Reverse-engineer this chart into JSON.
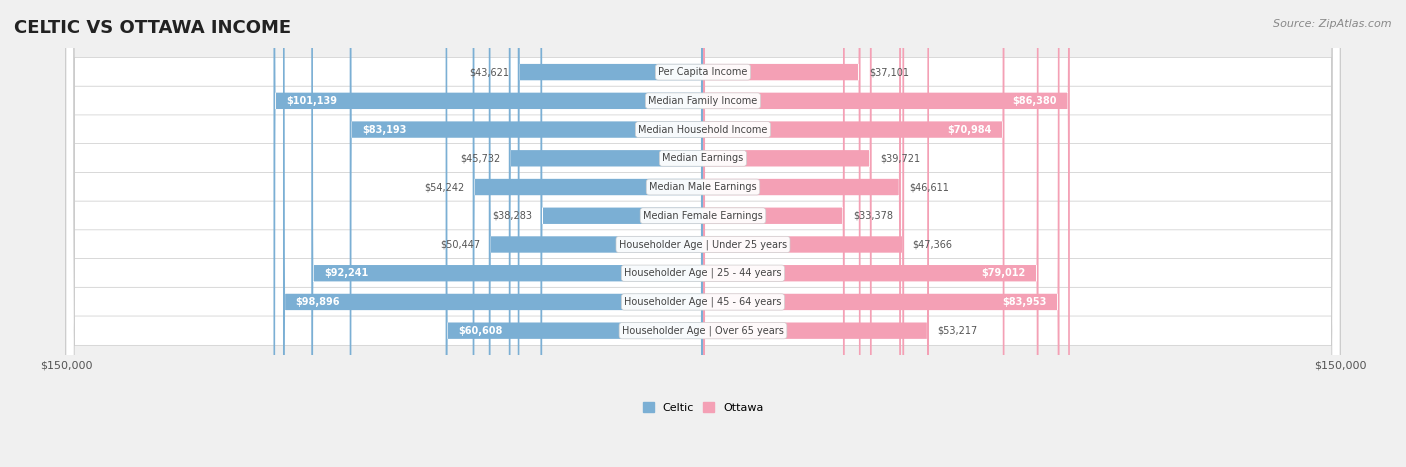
{
  "title": "CELTIC VS OTTAWA INCOME",
  "source": "Source: ZipAtlas.com",
  "categories": [
    "Per Capita Income",
    "Median Family Income",
    "Median Household Income",
    "Median Earnings",
    "Median Male Earnings",
    "Median Female Earnings",
    "Householder Age | Under 25 years",
    "Householder Age | 25 - 44 years",
    "Householder Age | 45 - 64 years",
    "Householder Age | Over 65 years"
  ],
  "celtic_values": [
    43621,
    101139,
    83193,
    45732,
    54242,
    38283,
    50447,
    92241,
    98896,
    60608
  ],
  "ottawa_values": [
    37101,
    86380,
    70984,
    39721,
    46611,
    33378,
    47366,
    79012,
    83953,
    53217
  ],
  "celtic_labels": [
    "$43,621",
    "$101,139",
    "$83,193",
    "$45,732",
    "$54,242",
    "$38,283",
    "$50,447",
    "$92,241",
    "$98,896",
    "$60,608"
  ],
  "ottawa_labels": [
    "$37,101",
    "$86,380",
    "$70,984",
    "$39,721",
    "$46,611",
    "$33,378",
    "$47,366",
    "$79,012",
    "$83,953",
    "$53,217"
  ],
  "celtic_color": "#7bafd4",
  "celtic_color_dark": "#4a86c8",
  "ottawa_color": "#f4a0b5",
  "ottawa_color_dark": "#e8698a",
  "max_value": 150000,
  "bg_color": "#f0f0f0",
  "row_bg": "#f8f8f8",
  "row_alt_bg": "#efefef"
}
